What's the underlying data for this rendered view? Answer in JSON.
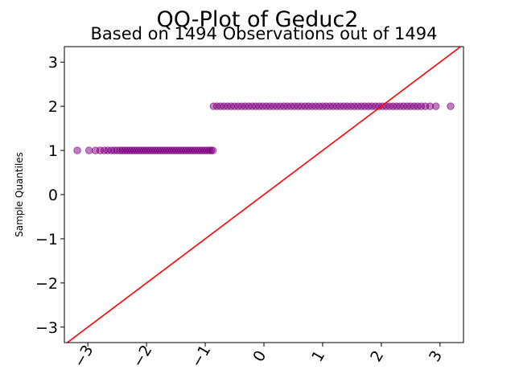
{
  "chart_data": {
    "type": "scatter",
    "title": "QQ-Plot of Geduc2",
    "subtitle": "Based on 1494 Observations out of 1494",
    "xlabel": "",
    "ylabel": "Sample Quantiles",
    "xlim": [
      -3.4,
      3.4
    ],
    "ylim": [
      -3.35,
      3.35
    ],
    "xticks": [
      -3,
      -2,
      -1,
      0,
      1,
      2,
      3
    ],
    "xtick_labels": [
      "−3",
      "−2",
      "−1",
      "0",
      "1",
      "2",
      "3"
    ],
    "yticks": [
      3,
      2,
      1,
      0,
      -1,
      -2,
      -3
    ],
    "ytick_labels": [
      "3",
      "2",
      "1",
      "0",
      "−1",
      "−2",
      "−3"
    ],
    "grid": false,
    "point_color": "#800080",
    "line_color": "#ff0000",
    "reference_line": {
      "slope": 1,
      "intercept": 0
    },
    "series": [
      {
        "values_y": 1,
        "x": [
          -3.18,
          -2.98,
          -2.87,
          -2.79,
          -2.72,
          -2.66,
          -2.6,
          -2.55,
          -2.5,
          -2.45,
          -2.41,
          -2.37,
          -2.33,
          -2.29,
          -2.25,
          -2.21,
          -2.17,
          -2.13,
          -2.09,
          -2.05,
          -2.01,
          -1.97,
          -1.93,
          -1.89,
          -1.85,
          -1.81,
          -1.77,
          -1.73,
          -1.69,
          -1.65,
          -1.61,
          -1.57,
          -1.53,
          -1.49,
          -1.45,
          -1.41,
          -1.37,
          -1.33,
          -1.29,
          -1.25,
          -1.21,
          -1.17,
          -1.13,
          -1.09,
          -1.05,
          -1.01,
          -0.97,
          -0.93,
          -0.9,
          -0.87
        ]
      },
      {
        "values_y": 2,
        "x": [
          -0.86,
          -0.8,
          -0.74,
          -0.68,
          -0.62,
          -0.56,
          -0.5,
          -0.44,
          -0.38,
          -0.32,
          -0.26,
          -0.2,
          -0.14,
          -0.08,
          -0.02,
          0.04,
          0.1,
          0.16,
          0.22,
          0.28,
          0.34,
          0.4,
          0.46,
          0.52,
          0.58,
          0.64,
          0.7,
          0.76,
          0.82,
          0.88,
          0.94,
          1.0,
          1.06,
          1.12,
          1.18,
          1.24,
          1.3,
          1.36,
          1.42,
          1.48,
          1.54,
          1.6,
          1.66,
          1.72,
          1.78,
          1.84,
          1.9,
          1.96,
          2.02,
          2.08,
          2.14,
          2.2,
          2.26,
          2.32,
          2.38,
          2.44,
          2.5,
          2.56,
          2.62,
          2.68,
          2.75,
          2.83,
          2.93,
          3.18
        ]
      }
    ]
  }
}
